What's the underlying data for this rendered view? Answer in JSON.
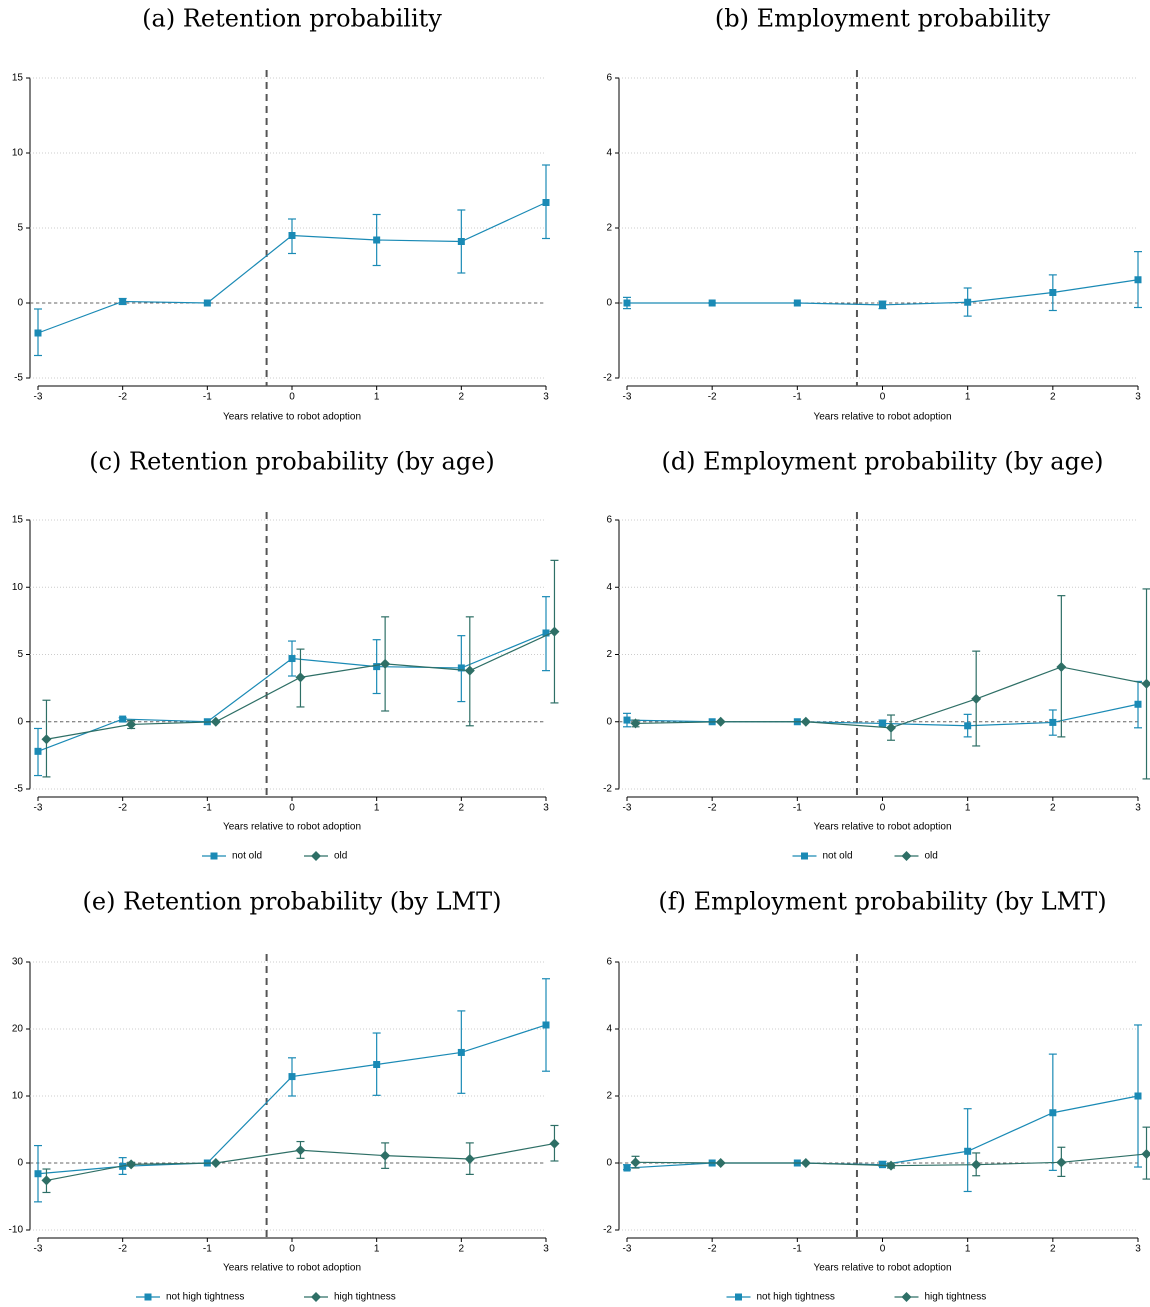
{
  "chart_data": [
    {
      "type": "line",
      "title": "(a) Retention probability",
      "xlabel": "Years relative to robot adoption",
      "x": [
        -3,
        -2,
        -1,
        0,
        1,
        2,
        3
      ],
      "xlim": [
        -3,
        3
      ],
      "xticks": [
        -3,
        -2,
        -1,
        0,
        1,
        2,
        3
      ],
      "ylim": [
        -5,
        15
      ],
      "yticks": [
        -5,
        0,
        5,
        10,
        15
      ],
      "grid": true,
      "vline": -0.3,
      "hline": 0,
      "series": [
        {
          "color": "#1a8ab5",
          "marker": "square",
          "values": [
            -2.0,
            0.1,
            0,
            4.5,
            4.2,
            4.1,
            6.7
          ],
          "lower": [
            -3.5,
            -0.1,
            0,
            3.3,
            2.5,
            2.0,
            4.3
          ],
          "upper": [
            -0.4,
            0.3,
            0,
            5.6,
            5.9,
            6.2,
            9.2
          ]
        }
      ]
    },
    {
      "type": "line",
      "title": "(b) Employment probability",
      "xlabel": "Years relative to robot adoption",
      "x": [
        -3,
        -2,
        -1,
        0,
        1,
        2,
        3
      ],
      "xlim": [
        -3,
        3
      ],
      "xticks": [
        -3,
        -2,
        -1,
        0,
        1,
        2,
        3
      ],
      "ylim": [
        -2,
        6
      ],
      "yticks": [
        -2,
        0,
        2,
        4,
        6
      ],
      "grid": true,
      "vline": -0.3,
      "hline": 0,
      "series": [
        {
          "color": "#1a8ab5",
          "marker": "square",
          "values": [
            0.0,
            0,
            0,
            -0.05,
            0.02,
            0.28,
            0.62
          ],
          "lower": [
            -0.15,
            0,
            0,
            -0.15,
            -0.35,
            -0.2,
            -0.12
          ],
          "upper": [
            0.15,
            0,
            0,
            0.05,
            0.4,
            0.75,
            1.37
          ]
        }
      ]
    },
    {
      "type": "line",
      "title": "(c) Retention probability (by age)",
      "xlabel": "Years relative to robot adoption",
      "x": [
        -3,
        -2,
        -1,
        0,
        1,
        2,
        3
      ],
      "xlim": [
        -3,
        3
      ],
      "xticks": [
        -3,
        -2,
        -1,
        0,
        1,
        2,
        3
      ],
      "ylim": [
        -5,
        15
      ],
      "yticks": [
        -5,
        0,
        5,
        10,
        15
      ],
      "grid": true,
      "vline": -0.3,
      "hline": 0,
      "series": [
        {
          "name": "not old",
          "color": "#1a8ab5",
          "marker": "square",
          "values": [
            -2.2,
            0.2,
            0,
            4.7,
            4.1,
            4.0,
            6.6
          ],
          "lower": [
            -4.0,
            0.0,
            0,
            3.4,
            2.1,
            1.5,
            3.8
          ],
          "upper": [
            -0.5,
            0.3,
            0,
            6.0,
            6.1,
            6.4,
            9.3
          ]
        },
        {
          "name": "old",
          "color": "#2e6f66",
          "marker": "diamond",
          "values": [
            -1.3,
            -0.2,
            0,
            3.3,
            4.3,
            3.8,
            6.7
          ],
          "lower": [
            -4.1,
            -0.5,
            0,
            1.1,
            0.8,
            -0.3,
            1.4
          ],
          "upper": [
            1.6,
            0.1,
            0,
            5.4,
            7.8,
            7.8,
            12.0
          ]
        }
      ]
    },
    {
      "type": "line",
      "title": "(d) Employment probability (by age)",
      "xlabel": "Years relative to robot adoption",
      "x": [
        -3,
        -2,
        -1,
        0,
        1,
        2,
        3
      ],
      "xlim": [
        -3,
        3
      ],
      "xticks": [
        -3,
        -2,
        -1,
        0,
        1,
        2,
        3
      ],
      "ylim": [
        -2,
        6
      ],
      "yticks": [
        -2,
        0,
        2,
        4,
        6
      ],
      "grid": true,
      "vline": -0.3,
      "hline": 0,
      "series": [
        {
          "name": "not old",
          "color": "#1a8ab5",
          "marker": "square",
          "values": [
            0.05,
            0,
            0,
            -0.05,
            -0.12,
            -0.02,
            0.52
          ],
          "lower": [
            -0.15,
            0,
            0,
            -0.1,
            -0.45,
            -0.4,
            -0.18
          ],
          "upper": [
            0.25,
            0,
            0,
            0.05,
            0.22,
            0.35,
            1.2
          ]
        },
        {
          "name": "old",
          "color": "#2e6f66",
          "marker": "diamond",
          "values": [
            -0.05,
            0,
            0,
            -0.18,
            0.68,
            1.63,
            1.13
          ],
          "lower": [
            -0.15,
            0,
            0,
            -0.55,
            -0.72,
            -0.45,
            -1.7
          ],
          "upper": [
            0.05,
            0,
            0,
            0.2,
            2.1,
            3.75,
            3.95
          ]
        }
      ]
    },
    {
      "type": "line",
      "title": "(e) Retention probability (by LMT)",
      "xlabel": "Years relative to robot adoption",
      "x": [
        -3,
        -2,
        -1,
        0,
        1,
        2,
        3
      ],
      "xlim": [
        -3,
        3
      ],
      "xticks": [
        -3,
        -2,
        -1,
        0,
        1,
        2,
        3
      ],
      "ylim": [
        -10,
        30
      ],
      "yticks": [
        -10,
        0,
        10,
        20,
        30
      ],
      "grid": true,
      "vline": -0.3,
      "hline": 0,
      "series": [
        {
          "name": "not high tightness",
          "color": "#1a8ab5",
          "marker": "square",
          "values": [
            -1.6,
            -0.5,
            0,
            12.9,
            14.7,
            16.5,
            20.6
          ],
          "lower": [
            -5.8,
            -1.7,
            0,
            10.0,
            10.1,
            10.4,
            13.7
          ],
          "upper": [
            2.6,
            0.8,
            0,
            15.7,
            19.4,
            22.7,
            27.5
          ]
        },
        {
          "name": "high tightness",
          "color": "#2e6f66",
          "marker": "diamond",
          "values": [
            -2.6,
            -0.2,
            0,
            1.9,
            1.1,
            0.6,
            2.9
          ],
          "lower": [
            -4.4,
            -0.3,
            0,
            0.7,
            -0.8,
            -1.7,
            0.3
          ],
          "upper": [
            -0.9,
            0.1,
            0,
            3.2,
            3.0,
            3.0,
            5.6
          ]
        }
      ]
    },
    {
      "type": "line",
      "title": "(f) Employment probability (by LMT)",
      "xlabel": "Years relative to robot adoption",
      "x": [
        -3,
        -2,
        -1,
        0,
        1,
        2,
        3
      ],
      "xlim": [
        -3,
        3
      ],
      "xticks": [
        -3,
        -2,
        -1,
        0,
        1,
        2,
        3
      ],
      "ylim": [
        -2,
        6
      ],
      "yticks": [
        -2,
        0,
        2,
        4,
        6
      ],
      "grid": true,
      "vline": -0.3,
      "hline": 0,
      "series": [
        {
          "name": "not high tightness",
          "color": "#1a8ab5",
          "marker": "square",
          "values": [
            -0.15,
            0,
            0,
            -0.05,
            0.35,
            1.5,
            2.0
          ],
          "lower": [
            -0.2,
            0,
            0,
            -0.1,
            -0.85,
            -0.22,
            -0.12
          ],
          "upper": [
            -0.05,
            0,
            0,
            0.05,
            1.62,
            3.25,
            4.12
          ]
        },
        {
          "name": "high tightness",
          "color": "#2e6f66",
          "marker": "diamond",
          "values": [
            0.02,
            0,
            0,
            -0.08,
            -0.05,
            0.02,
            0.27
          ],
          "lower": [
            -0.15,
            0,
            0,
            -0.15,
            -0.38,
            -0.4,
            -0.48
          ],
          "upper": [
            0.2,
            0,
            0,
            0,
            0.3,
            0.47,
            1.07
          ]
        }
      ]
    }
  ]
}
